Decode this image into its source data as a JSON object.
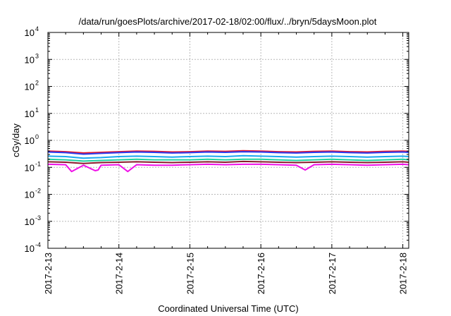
{
  "chart_data": {
    "type": "line",
    "title": "/data/run/goesPlots/archive/2017-02-18/02:00/flux/../bryn/5daysMoon.plot",
    "xlabel": "Coordinated Universal Time (UTC)",
    "ylabel": "cGy/day",
    "xlim": [
      "2017-02-13",
      "2017-02-18 02:00"
    ],
    "ylim": [
      0.0001,
      10000
    ],
    "y_scale": "log",
    "grid": true,
    "x_ticks": [
      "2017-2-13",
      "2017-2-14",
      "2017-2-15",
      "2017-2-16",
      "2017-2-17",
      "2017-2-18"
    ],
    "y_ticks": [
      {
        "base": "10",
        "exp": "-4"
      },
      {
        "base": "10",
        "exp": "-3"
      },
      {
        "base": "10",
        "exp": "-2"
      },
      {
        "base": "10",
        "exp": "-1"
      },
      {
        "base": "10",
        "exp": "0"
      },
      {
        "base": "10",
        "exp": "1"
      },
      {
        "base": "10",
        "exp": "2"
      },
      {
        "base": "10",
        "exp": "3"
      },
      {
        "base": "10",
        "exp": "4"
      }
    ],
    "series": [
      {
        "color": "#e8142a",
        "x": [
          "2017-02-13 00:00",
          "2017-02-13 06:00",
          "2017-02-13 12:00",
          "2017-02-13 18:00",
          "2017-02-14 00:00",
          "2017-02-14 06:00",
          "2017-02-14 12:00",
          "2017-02-14 18:00",
          "2017-02-15 00:00",
          "2017-02-15 06:00",
          "2017-02-15 12:00",
          "2017-02-15 18:00",
          "2017-02-16 00:00",
          "2017-02-16 06:00",
          "2017-02-16 12:00",
          "2017-02-16 18:00",
          "2017-02-17 00:00",
          "2017-02-17 06:00",
          "2017-02-17 12:00",
          "2017-02-17 18:00",
          "2017-02-18 00:00",
          "2017-02-18 02:00"
        ],
        "values": [
          0.4,
          0.38,
          0.34,
          0.36,
          0.38,
          0.4,
          0.39,
          0.37,
          0.38,
          0.4,
          0.39,
          0.41,
          0.4,
          0.38,
          0.37,
          0.39,
          0.4,
          0.38,
          0.37,
          0.39,
          0.4,
          0.39
        ]
      },
      {
        "color": "#2a3cf0",
        "x": [
          "2017-02-13 00:00",
          "2017-02-13 06:00",
          "2017-02-13 12:00",
          "2017-02-13 18:00",
          "2017-02-14 00:00",
          "2017-02-14 06:00",
          "2017-02-14 12:00",
          "2017-02-14 18:00",
          "2017-02-15 00:00",
          "2017-02-15 06:00",
          "2017-02-15 12:00",
          "2017-02-15 18:00",
          "2017-02-16 00:00",
          "2017-02-16 06:00",
          "2017-02-16 12:00",
          "2017-02-16 18:00",
          "2017-02-17 00:00",
          "2017-02-17 06:00",
          "2017-02-17 12:00",
          "2017-02-17 18:00",
          "2017-02-18 00:00",
          "2017-02-18 02:00"
        ],
        "values": [
          0.37,
          0.35,
          0.31,
          0.33,
          0.35,
          0.37,
          0.36,
          0.34,
          0.35,
          0.37,
          0.36,
          0.38,
          0.37,
          0.35,
          0.34,
          0.36,
          0.37,
          0.35,
          0.34,
          0.36,
          0.37,
          0.36
        ]
      },
      {
        "color": "#18a8f0",
        "x": [
          "2017-02-13 00:00",
          "2017-02-13 06:00",
          "2017-02-13 12:00",
          "2017-02-13 18:00",
          "2017-02-14 00:00",
          "2017-02-14 06:00",
          "2017-02-14 12:00",
          "2017-02-14 18:00",
          "2017-02-15 00:00",
          "2017-02-15 06:00",
          "2017-02-15 12:00",
          "2017-02-15 18:00",
          "2017-02-16 00:00",
          "2017-02-16 06:00",
          "2017-02-16 12:00",
          "2017-02-16 18:00",
          "2017-02-17 00:00",
          "2017-02-17 06:00",
          "2017-02-17 12:00",
          "2017-02-17 18:00",
          "2017-02-18 00:00",
          "2017-02-18 02:00"
        ],
        "values": [
          0.26,
          0.25,
          0.22,
          0.23,
          0.25,
          0.26,
          0.25,
          0.24,
          0.25,
          0.26,
          0.25,
          0.27,
          0.26,
          0.25,
          0.24,
          0.25,
          0.26,
          0.25,
          0.24,
          0.25,
          0.26,
          0.25
        ]
      },
      {
        "color": "#20d0a0",
        "x": [
          "2017-02-13 00:00",
          "2017-02-13 06:00",
          "2017-02-13 12:00",
          "2017-02-13 18:00",
          "2017-02-14 00:00",
          "2017-02-14 06:00",
          "2017-02-14 12:00",
          "2017-02-14 18:00",
          "2017-02-15 00:00",
          "2017-02-15 06:00",
          "2017-02-15 12:00",
          "2017-02-15 18:00",
          "2017-02-16 00:00",
          "2017-02-16 06:00",
          "2017-02-16 12:00",
          "2017-02-16 18:00",
          "2017-02-17 00:00",
          "2017-02-17 06:00",
          "2017-02-17 12:00",
          "2017-02-17 18:00",
          "2017-02-18 00:00",
          "2017-02-18 02:00"
        ],
        "values": [
          0.2,
          0.19,
          0.17,
          0.18,
          0.19,
          0.2,
          0.19,
          0.19,
          0.19,
          0.2,
          0.19,
          0.2,
          0.2,
          0.19,
          0.18,
          0.19,
          0.2,
          0.19,
          0.18,
          0.19,
          0.2,
          0.19
        ]
      },
      {
        "color": "#8a1a2a",
        "x": [
          "2017-02-13 00:00",
          "2017-02-13 06:00",
          "2017-02-13 12:00",
          "2017-02-13 18:00",
          "2017-02-14 00:00",
          "2017-02-14 06:00",
          "2017-02-14 12:00",
          "2017-02-14 18:00",
          "2017-02-15 00:00",
          "2017-02-15 06:00",
          "2017-02-15 12:00",
          "2017-02-15 18:00",
          "2017-02-16 00:00",
          "2017-02-16 06:00",
          "2017-02-16 12:00",
          "2017-02-16 18:00",
          "2017-02-17 00:00",
          "2017-02-17 06:00",
          "2017-02-17 12:00",
          "2017-02-17 18:00",
          "2017-02-18 00:00",
          "2017-02-18 02:00"
        ],
        "values": [
          0.16,
          0.155,
          0.14,
          0.15,
          0.155,
          0.16,
          0.155,
          0.15,
          0.155,
          0.16,
          0.155,
          0.165,
          0.16,
          0.155,
          0.15,
          0.155,
          0.16,
          0.155,
          0.15,
          0.155,
          0.16,
          0.155
        ]
      },
      {
        "color": "#f010e8",
        "x": [
          "2017-02-13 00:00",
          "2017-02-13 06:00",
          "2017-02-13 08:00",
          "2017-02-13 12:00",
          "2017-02-13 16:00",
          "2017-02-13 17:00",
          "2017-02-13 18:00",
          "2017-02-14 00:00",
          "2017-02-14 03:00",
          "2017-02-14 06:00",
          "2017-02-14 12:00",
          "2017-02-14 18:00",
          "2017-02-15 00:00",
          "2017-02-15 06:00",
          "2017-02-15 12:00",
          "2017-02-15 18:00",
          "2017-02-16 00:00",
          "2017-02-16 06:00",
          "2017-02-16 12:00",
          "2017-02-16 15:00",
          "2017-02-16 18:00",
          "2017-02-17 00:00",
          "2017-02-17 06:00",
          "2017-02-17 12:00",
          "2017-02-17 18:00",
          "2017-02-18 00:00",
          "2017-02-18 02:00"
        ],
        "values": [
          0.13,
          0.125,
          0.07,
          0.12,
          0.075,
          0.08,
          0.12,
          0.125,
          0.07,
          0.125,
          0.12,
          0.12,
          0.125,
          0.13,
          0.125,
          0.13,
          0.13,
          0.125,
          0.12,
          0.08,
          0.125,
          0.13,
          0.125,
          0.12,
          0.125,
          0.13,
          0.125
        ]
      }
    ]
  }
}
